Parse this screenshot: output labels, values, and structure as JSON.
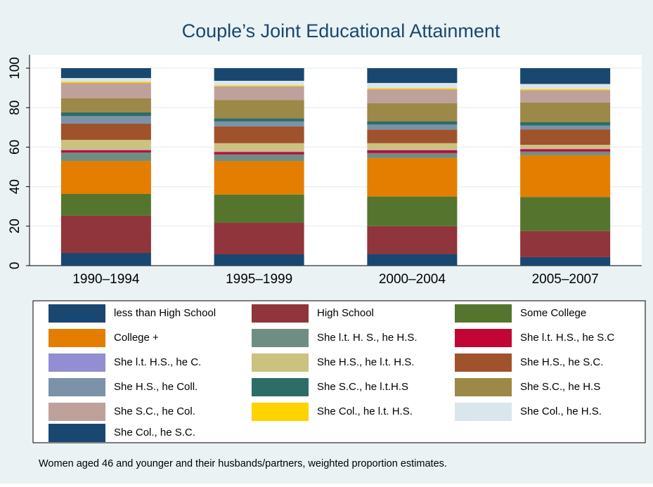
{
  "chart_data": {
    "type": "stacked_bar",
    "title": "Couple’s Joint Educational Attainment",
    "note": "Women aged 46 and younger and their husbands/partners, weighted proportion estimates.",
    "categories": [
      "1990–1994",
      "1995–1999",
      "2000–2004",
      "2005–2007"
    ],
    "ylim": [
      0,
      100
    ],
    "yticks": [
      0,
      20,
      40,
      60,
      80,
      100
    ],
    "grid": true,
    "series": [
      {
        "name": "less than High School",
        "color": "#1a476f",
        "values": [
          6.4,
          5.7,
          5.9,
          4.3
        ]
      },
      {
        "name": "High School",
        "color": "#90353b",
        "values": [
          18.9,
          16,
          14.1,
          13.2
        ]
      },
      {
        "name": "Some College",
        "color": "#55752f",
        "values": [
          11,
          14.3,
          15,
          17.3
        ]
      },
      {
        "name": "College +",
        "color": "#e37e00",
        "values": [
          16.7,
          17,
          19.5,
          21.1
        ]
      },
      {
        "name": "She l.t. H. S., he H.S.",
        "color": "#6e8e84",
        "values": [
          4.3,
          3.3,
          2.5,
          1.9
        ]
      },
      {
        "name": "She l.t. H.S., he S.C",
        "color": "#c10534",
        "values": [
          1.1,
          1.2,
          1.4,
          1.1
        ]
      },
      {
        "name": "She l.t. H.S., he C.",
        "color": "#938dd2",
        "values": [
          0.3,
          0.3,
          0.3,
          0.3
        ]
      },
      {
        "name": "She H.S., he l.t. H.S.",
        "color": "#cac27e",
        "values": [
          5,
          4.2,
          3.3,
          2
        ]
      },
      {
        "name": "She H.S., he S.C.",
        "color": "#a0522d",
        "values": [
          8.2,
          8.5,
          6.9,
          7.8
        ]
      },
      {
        "name": "She H.S., he Coll.",
        "color": "#7b92a8",
        "values": [
          3.9,
          2.5,
          2.5,
          2
        ]
      },
      {
        "name": "She S.C., he l.t.H.S",
        "color": "#2d6d66",
        "values": [
          1.8,
          1.6,
          1.7,
          1.6
        ]
      },
      {
        "name": "She S.C., he H.S",
        "color": "#9c8847",
        "values": [
          7.1,
          9.2,
          9.1,
          10
        ]
      },
      {
        "name": "She S.C., he Col.",
        "color": "#bfa19c",
        "values": [
          7.8,
          7,
          7.1,
          6.2
        ]
      },
      {
        "name": "She Col., he l.t. H.S.",
        "color": "#ffd200",
        "values": [
          0.7,
          0.5,
          0.6,
          0.6
        ]
      },
      {
        "name": "She Col., he H.S.",
        "color": "#d9e6eb",
        "values": [
          1.8,
          2.3,
          2.6,
          2.6
        ]
      },
      {
        "name": "She Col., he S.C.",
        "color": "#1a476f",
        "values": [
          5,
          6.4,
          7.5,
          8
        ]
      }
    ]
  }
}
